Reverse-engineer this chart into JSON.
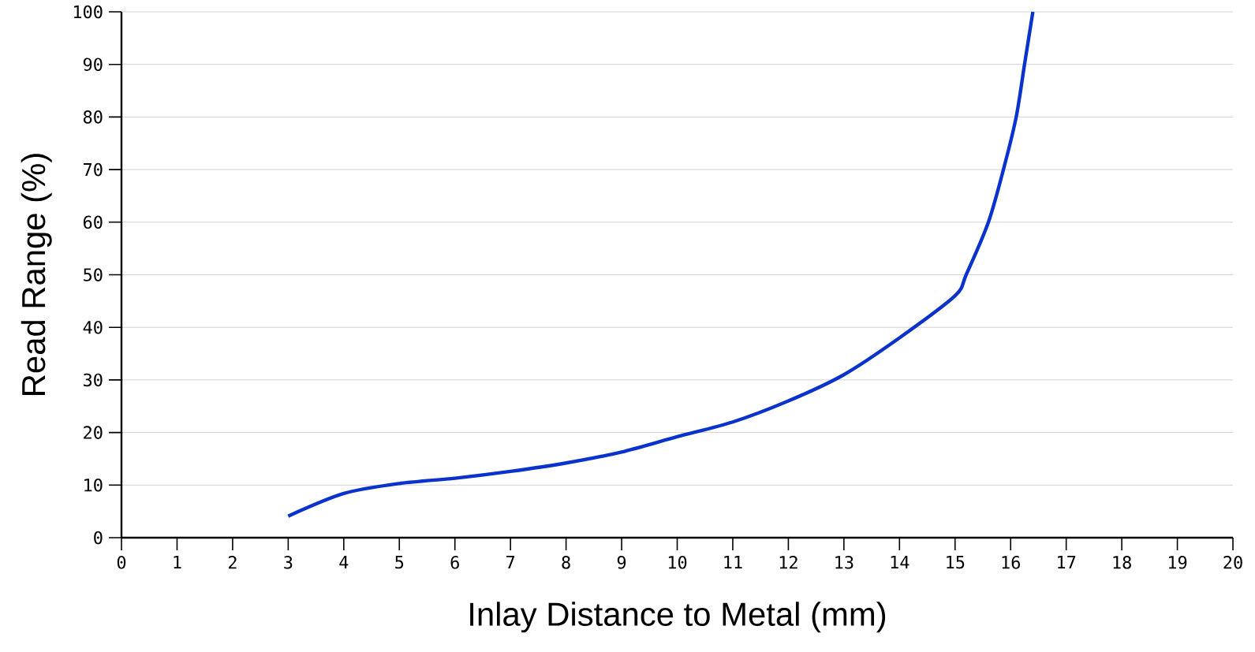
{
  "chart_data": {
    "type": "line",
    "xlabel": "Inlay Distance to Metal (mm)",
    "ylabel": "Read Range (%)",
    "x": [
      3,
      4,
      5,
      6,
      7,
      8,
      9,
      10,
      11,
      12,
      13,
      14,
      15,
      15.2,
      15.6,
      15.87,
      16.1,
      16.25,
      16.4
    ],
    "series": [
      {
        "color": "#0a32cc",
        "values": [
          4.1,
          8.4,
          10.3,
          11.3,
          12.6,
          14.2,
          16.3,
          19.2,
          22,
          26,
          31,
          38,
          46,
          50,
          60,
          70,
          80,
          90,
          100
        ]
      }
    ],
    "xlim": [
      0,
      20
    ],
    "ylim": [
      0,
      100
    ],
    "xticks": [
      0,
      1,
      2,
      3,
      4,
      5,
      6,
      7,
      8,
      9,
      10,
      11,
      12,
      13,
      14,
      15,
      16,
      17,
      18,
      19,
      20
    ],
    "yticks": [
      0,
      10,
      20,
      30,
      40,
      50,
      60,
      70,
      80,
      90,
      100
    ],
    "grid": "y",
    "marker": "none",
    "line_style": "solid"
  }
}
